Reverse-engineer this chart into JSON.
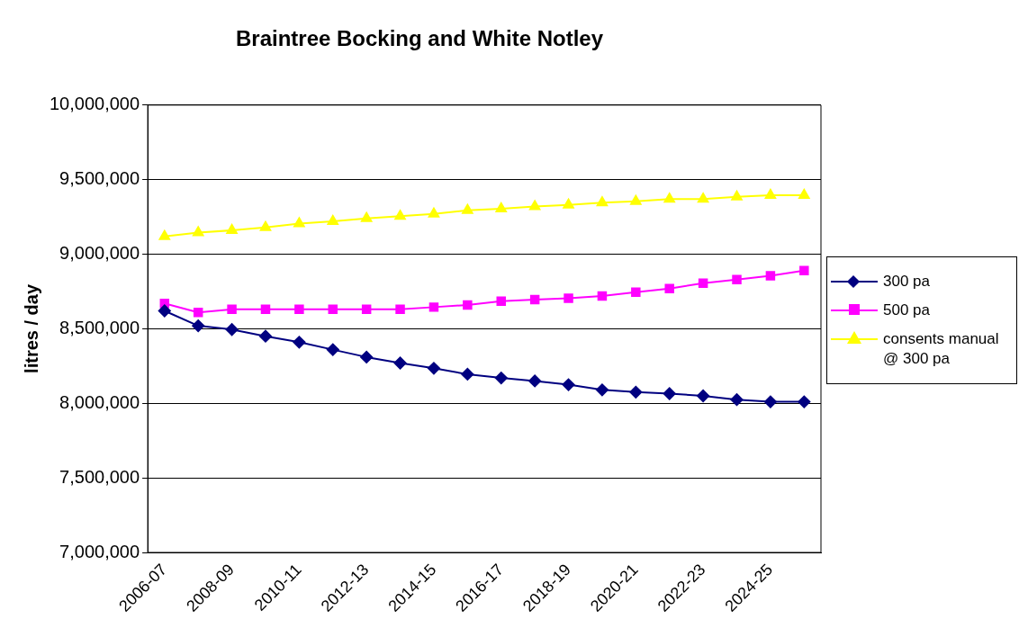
{
  "chart_data": {
    "type": "line",
    "title": "Braintree Bocking and White Notley",
    "ylabel": "litres / day",
    "categories": [
      "2006-07",
      null,
      "2008-09",
      null,
      "2010-11",
      null,
      "2012-13",
      null,
      "2014-15",
      null,
      "2016-17",
      null,
      "2018-19",
      null,
      "2020-21",
      null,
      "2022-23",
      null,
      "2024-25",
      null
    ],
    "series": [
      {
        "name": "300 pa",
        "color": "#000080",
        "marker": "diamond",
        "values": [
          8620000,
          8520000,
          8495000,
          8450000,
          8410000,
          8360000,
          8310000,
          8270000,
          8235000,
          8195000,
          8170000,
          8150000,
          8125000,
          8090000,
          8075000,
          8065000,
          8050000,
          8025000,
          8010000,
          8010000
        ]
      },
      {
        "name": "500 pa",
        "color": "#ff00ff",
        "marker": "square",
        "values": [
          8670000,
          8610000,
          8630000,
          8630000,
          8630000,
          8630000,
          8630000,
          8630000,
          8645000,
          8660000,
          8685000,
          8695000,
          8705000,
          8720000,
          8745000,
          8770000,
          8805000,
          8830000,
          8855000,
          8890000
        ]
      },
      {
        "name": "consents manual\n@ 300 pa",
        "color": "#ffff00",
        "marker": "triangle",
        "values": [
          9120000,
          9145000,
          9160000,
          9180000,
          9205000,
          9220000,
          9240000,
          9255000,
          9270000,
          9295000,
          9305000,
          9320000,
          9330000,
          9345000,
          9355000,
          9370000,
          9370000,
          9385000,
          9395000,
          9395000
        ]
      }
    ],
    "ylim": [
      7000000,
      10000000
    ],
    "yticks": [
      {
        "value": 7000000,
        "label": "7,000,000"
      },
      {
        "value": 7500000,
        "label": "7,500,000"
      },
      {
        "value": 8000000,
        "label": "8,000,000"
      },
      {
        "value": 8500000,
        "label": "8,500,000"
      },
      {
        "value": 9000000,
        "label": "9,000,000"
      },
      {
        "value": 9500000,
        "label": "9,500,000"
      },
      {
        "value": 10000000,
        "label": "10,000,000"
      }
    ],
    "grid": "y",
    "legend": "right"
  }
}
